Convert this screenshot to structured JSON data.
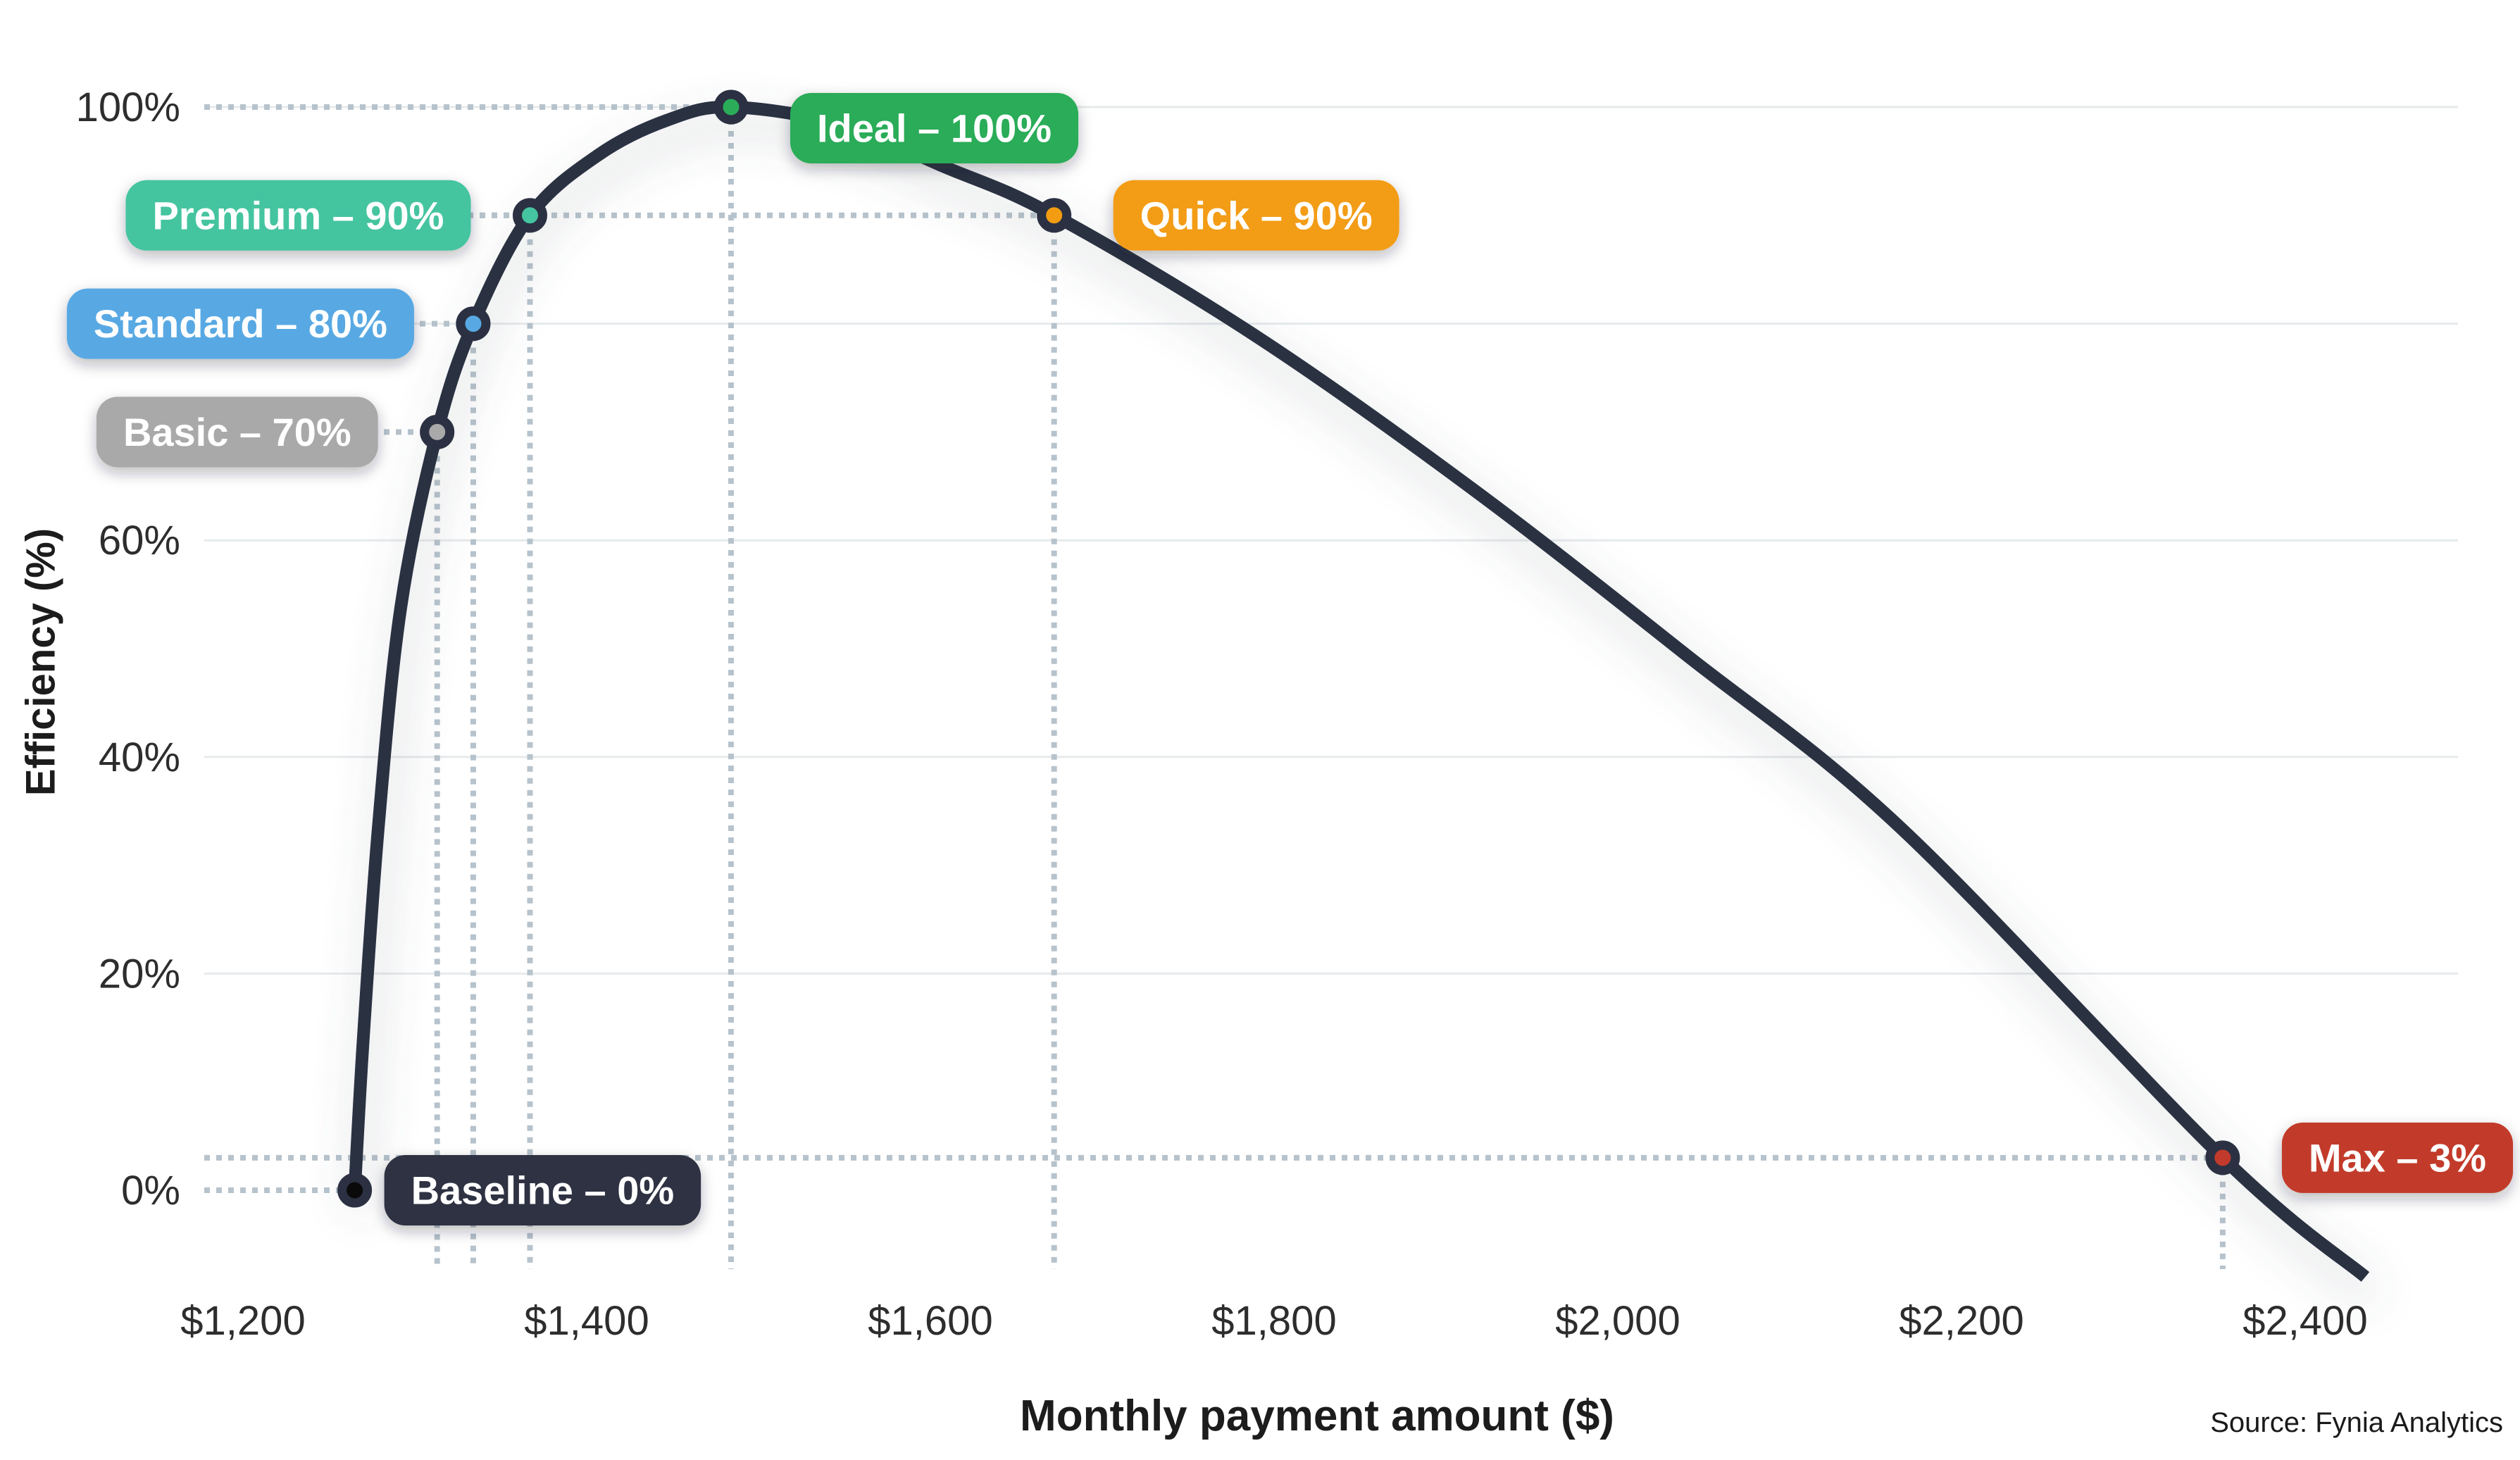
{
  "axes": {
    "x_title": "Monthly payment amount ($)",
    "y_title": "Efficiency (%)"
  },
  "source": "Source: Fynia Analytics",
  "colors": {
    "curve": "#2B3142",
    "grid": "#E7EAEC",
    "guide_dots": "#B7C3CC",
    "tick_text": "#2D2D2D",
    "baseline_chip": "#2D3343",
    "basic_chip": "#A9A9A9",
    "standard_chip": "#58A9E3",
    "premium_chip": "#45C4A0",
    "ideal_chip": "#2BAC59",
    "quick_chip": "#F39C12",
    "max_chip": "#C23A2B"
  },
  "chart_data": {
    "type": "line",
    "title": "",
    "xlabel": "Monthly payment amount ($)",
    "ylabel": "Efficiency (%)",
    "xlim": [
      1177,
      2489
    ],
    "ylim": [
      0,
      100
    ],
    "grid": "horizontal-solid-plus-dotted-guides",
    "legend_position": "none",
    "x_ticks": [
      {
        "value": 1200,
        "label": "$1,200"
      },
      {
        "value": 1400,
        "label": "$1,400"
      },
      {
        "value": 1600,
        "label": "$1,600"
      },
      {
        "value": 1800,
        "label": "$1,800"
      },
      {
        "value": 2000,
        "label": "$2,000"
      },
      {
        "value": 2200,
        "label": "$2,200"
      },
      {
        "value": 2400,
        "label": "$2,400"
      }
    ],
    "y_ticks": [
      {
        "value": 0,
        "label": "0%"
      },
      {
        "value": 20,
        "label": "20%"
      },
      {
        "value": 40,
        "label": "40%"
      },
      {
        "value": 60,
        "label": "60%"
      },
      {
        "value": 80,
        "label": "80%"
      },
      {
        "value": 100,
        "label": "100%"
      }
    ],
    "grid_y_values": [
      20,
      40,
      60,
      80,
      100
    ],
    "labeled_points": [
      {
        "name": "baseline",
        "label": "Baseline – 0%",
        "x": 1265,
        "y": 0,
        "color": "#2D3343",
        "marker_fill": "#0A0A0A",
        "side": "right",
        "v_guide": false
      },
      {
        "name": "basic",
        "label": "Basic – 70%",
        "x": 1313,
        "y": 70,
        "color": "#A9A9A9",
        "side": "left",
        "v_guide": true
      },
      {
        "name": "standard",
        "label": "Standard – 80%",
        "x": 1334,
        "y": 80,
        "color": "#58A9E3",
        "side": "left",
        "v_guide": true
      },
      {
        "name": "premium",
        "label": "Premium – 90%",
        "x": 1367,
        "y": 90,
        "color": "#45C4A0",
        "side": "left",
        "v_guide": true
      },
      {
        "name": "ideal",
        "label": "Ideal – 100%",
        "x": 1484,
        "y": 100,
        "color": "#2BAC59",
        "side": "right",
        "v_guide": true
      },
      {
        "name": "quick",
        "label": "Quick – 90%",
        "x": 1672,
        "y": 90,
        "color": "#F39C12",
        "side": "right",
        "v_guide": true
      },
      {
        "name": "max",
        "label": "Max – 3%",
        "x": 2352,
        "y": 3,
        "color": "#C23A2B",
        "side": "right",
        "v_guide": true
      }
    ],
    "curve_samples": [
      [
        1265,
        0
      ],
      [
        1270,
        14
      ],
      [
        1279,
        34
      ],
      [
        1292,
        54
      ],
      [
        1313,
        70
      ],
      [
        1334,
        80
      ],
      [
        1367,
        90
      ],
      [
        1407,
        95.6
      ],
      [
        1447,
        98.8
      ],
      [
        1484,
        100
      ],
      [
        1548,
        98.4
      ],
      [
        1608,
        94.5
      ],
      [
        1672,
        90
      ],
      [
        1790,
        78.8
      ],
      [
        1915,
        64.8
      ],
      [
        2040,
        49.4
      ],
      [
        2165,
        33.4
      ],
      [
        2352,
        3
      ],
      [
        2435,
        -8
      ]
    ]
  }
}
